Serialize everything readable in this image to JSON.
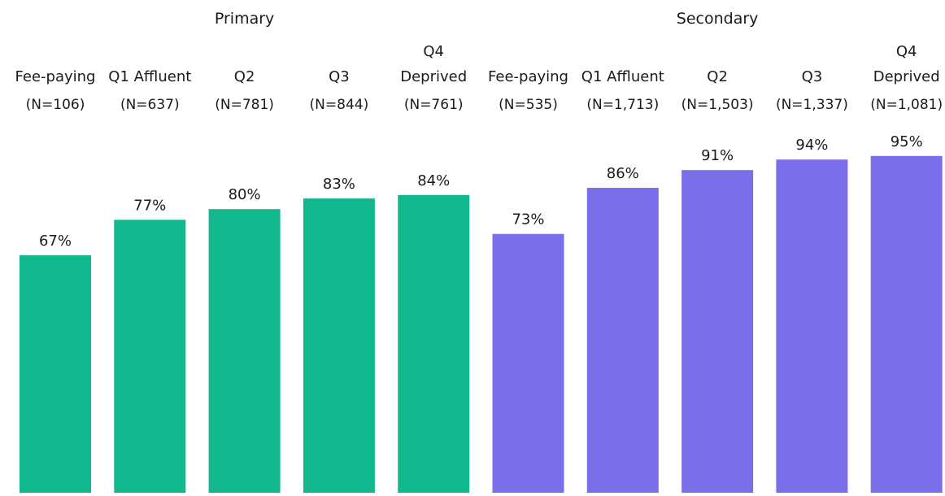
{
  "chart_data": {
    "type": "bar",
    "title": "",
    "xlabel": "",
    "ylabel": "",
    "ylim": [
      0,
      100
    ],
    "unit": "%",
    "grid": false,
    "legend": "none",
    "groups": [
      {
        "name": "Primary",
        "color": "#12b88d",
        "bars": [
          {
            "category": [
              "Fee-paying"
            ],
            "n": "(N=106)",
            "value": 67,
            "label": "67%"
          },
          {
            "category": [
              "Q1 Affluent"
            ],
            "n": "(N=637)",
            "value": 77,
            "label": "77%"
          },
          {
            "category": [
              "Q2"
            ],
            "n": "(N=781)",
            "value": 80,
            "label": "80%"
          },
          {
            "category": [
              "Q3"
            ],
            "n": "(N=844)",
            "value": 83,
            "label": "83%"
          },
          {
            "category": [
              "Q4",
              "Deprived"
            ],
            "n": "(N=761)",
            "value": 84,
            "label": "84%"
          }
        ]
      },
      {
        "name": "Secondary",
        "color": "#7b6eea",
        "bars": [
          {
            "category": [
              "Fee-paying"
            ],
            "n": "(N=535)",
            "value": 73,
            "label": "73%"
          },
          {
            "category": [
              "Q1 Affluent"
            ],
            "n": "(N=1,713)",
            "value": 86,
            "label": "86%"
          },
          {
            "category": [
              "Q2"
            ],
            "n": "(N=1,503)",
            "value": 91,
            "label": "91%"
          },
          {
            "category": [
              "Q3"
            ],
            "n": "(N=1,337)",
            "value": 94,
            "label": "94%"
          },
          {
            "category": [
              "Q4",
              "Deprived"
            ],
            "n": "(N=1,081)",
            "value": 95,
            "label": "95%"
          }
        ]
      }
    ]
  }
}
